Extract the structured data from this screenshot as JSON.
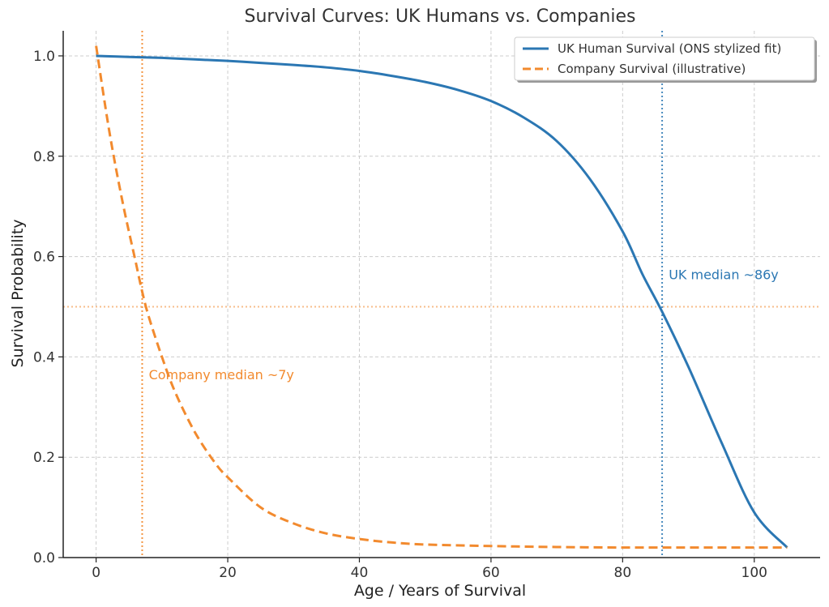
{
  "colors": {
    "human": "#2b77b3",
    "company": "#f28a2e",
    "grid": "#cccccc",
    "axis": "#222222"
  },
  "chart_data": {
    "type": "line",
    "title": "Survival Curves: UK Humans vs. Companies",
    "xlabel": "Age / Years of Survival",
    "ylabel": "Survival Probability",
    "xlim": [
      -5,
      110
    ],
    "ylim": [
      0,
      1.05
    ],
    "xticks": [
      0,
      20,
      40,
      60,
      80,
      100
    ],
    "xtick_labels": [
      "0",
      "20",
      "40",
      "60",
      "80",
      "100"
    ],
    "yticks": [
      0.0,
      0.2,
      0.4,
      0.6,
      0.8,
      1.0
    ],
    "ytick_labels": [
      "0.0",
      "0.2",
      "0.4",
      "0.6",
      "0.8",
      "1.0"
    ],
    "grid": true,
    "legend_position": "top-right",
    "series": [
      {
        "name": "UK Human Survival (ONS stylized fit)",
        "style": "solid",
        "x": [
          0,
          5,
          10,
          15,
          20,
          25,
          30,
          35,
          40,
          45,
          50,
          55,
          60,
          65,
          70,
          75,
          80,
          83,
          86,
          90,
          95,
          100,
          105
        ],
        "y": [
          1.0,
          0.998,
          0.996,
          0.993,
          0.99,
          0.986,
          0.982,
          0.977,
          0.97,
          0.96,
          0.948,
          0.932,
          0.91,
          0.877,
          0.83,
          0.755,
          0.65,
          0.565,
          0.49,
          0.38,
          0.23,
          0.09,
          0.02
        ]
      },
      {
        "name": "Company Survival (illustrative)",
        "style": "dashed",
        "x": [
          0,
          2,
          4,
          6,
          7,
          8,
          10,
          12,
          15,
          18,
          20,
          25,
          30,
          35,
          40,
          45,
          50,
          60,
          70,
          80,
          90,
          105
        ],
        "y": [
          1.02,
          0.85,
          0.71,
          0.59,
          0.53,
          0.48,
          0.4,
          0.33,
          0.25,
          0.19,
          0.16,
          0.1,
          0.068,
          0.048,
          0.037,
          0.03,
          0.026,
          0.023,
          0.021,
          0.02,
          0.02,
          0.02
        ]
      }
    ],
    "reference_lines": [
      {
        "orientation": "vertical",
        "value": 7,
        "series": "company"
      },
      {
        "orientation": "horizontal",
        "value": 0.5,
        "series": "company"
      },
      {
        "orientation": "vertical",
        "value": 86,
        "series": "human"
      }
    ],
    "annotations": [
      {
        "text": "Company median ~7y",
        "x": 8,
        "y": 0.355,
        "series": "company"
      },
      {
        "text": "UK median ~86y",
        "x": 87,
        "y": 0.555,
        "series": "human"
      }
    ]
  }
}
